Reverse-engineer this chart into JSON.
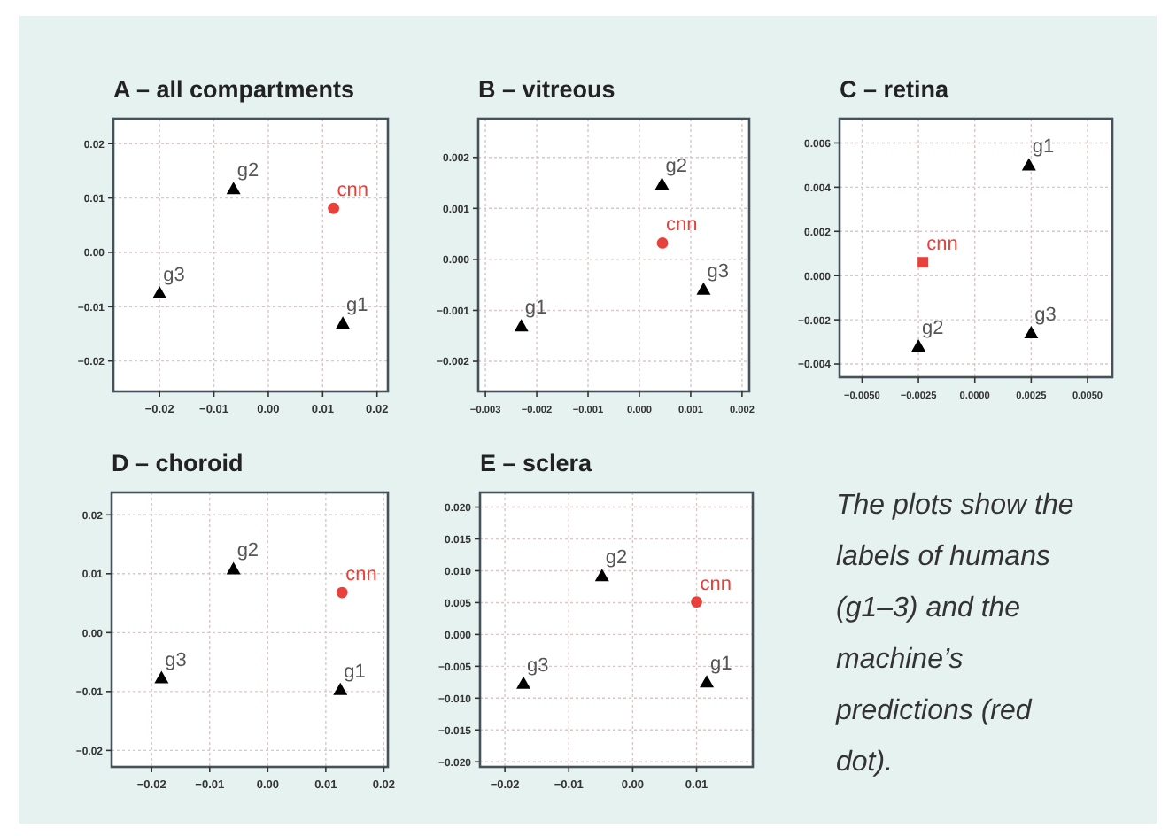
{
  "chart_data": [
    {
      "type": "scatter",
      "title": "A – all compartments",
      "xlim": [
        -0.0285,
        0.022
      ],
      "ylim": [
        -0.0256,
        0.0246
      ],
      "xticks": [
        {
          "value": -0.02,
          "label": "−0.02"
        },
        {
          "value": -0.01,
          "label": "−0.01"
        },
        {
          "value": 0,
          "label": "0.00"
        },
        {
          "value": 0.01,
          "label": "0.01"
        },
        {
          "value": 0.02,
          "label": "0.02"
        }
      ],
      "yticks": [
        {
          "value": -0.02,
          "label": "−0.02"
        },
        {
          "value": -0.01,
          "label": "−0.01"
        },
        {
          "value": 0,
          "label": "0.00"
        },
        {
          "value": 0.01,
          "label": "0.01"
        },
        {
          "value": 0.02,
          "label": "0.02"
        }
      ],
      "grid": true,
      "series": [
        {
          "name": "g1",
          "color": "#000000",
          "marker": "triangle",
          "x": [
            0.0137
          ],
          "values": [
            -0.0131
          ]
        },
        {
          "name": "g2",
          "color": "#000000",
          "marker": "triangle",
          "x": [
            -0.0064
          ],
          "values": [
            0.0117
          ]
        },
        {
          "name": "g3",
          "color": "#000000",
          "marker": "triangle",
          "x": [
            -0.02
          ],
          "values": [
            -0.0075
          ]
        },
        {
          "name": "cnn",
          "color": "#e8403a",
          "marker": "circle",
          "x": [
            0.012
          ],
          "values": [
            0.0081
          ]
        }
      ]
    },
    {
      "type": "scatter",
      "title": "B – vitreous",
      "xlim": [
        -0.00314,
        0.00214
      ],
      "ylim": [
        -0.00259,
        0.00276
      ],
      "xticks": [
        {
          "value": -0.003,
          "label": "−0.003"
        },
        {
          "value": -0.002,
          "label": "−0.002"
        },
        {
          "value": -0.001,
          "label": "−0.001"
        },
        {
          "value": 0,
          "label": "0.000"
        },
        {
          "value": 0.001,
          "label": "0.001"
        },
        {
          "value": 0.002,
          "label": "0.002"
        }
      ],
      "yticks": [
        {
          "value": -0.002,
          "label": "−0.002"
        },
        {
          "value": -0.001,
          "label": "−0.001"
        },
        {
          "value": 0,
          "label": "0.000"
        },
        {
          "value": 0.001,
          "label": "0.001"
        },
        {
          "value": 0.002,
          "label": "0.002"
        }
      ],
      "grid": true,
      "series": [
        {
          "name": "g1",
          "color": "#000000",
          "marker": "triangle",
          "x": [
            -0.0023
          ],
          "values": [
            -0.00131
          ]
        },
        {
          "name": "g2",
          "color": "#000000",
          "marker": "triangle",
          "x": [
            0.00044
          ],
          "values": [
            0.00147
          ]
        },
        {
          "name": "g3",
          "color": "#000000",
          "marker": "triangle",
          "x": [
            0.00125
          ],
          "values": [
            -0.00059
          ]
        },
        {
          "name": "cnn",
          "color": "#e8403a",
          "marker": "circle",
          "x": [
            0.00045
          ],
          "values": [
            0.00032
          ]
        }
      ]
    },
    {
      "type": "scatter",
      "title": "C – retina",
      "xlim": [
        -0.006,
        0.0061
      ],
      "ylim": [
        -0.0046,
        0.0071
      ],
      "xticks": [
        {
          "value": -0.005,
          "label": "−0.0050"
        },
        {
          "value": -0.0025,
          "label": "−0.0025"
        },
        {
          "value": 0,
          "label": "0.0000"
        },
        {
          "value": 0.0025,
          "label": "0.0025"
        },
        {
          "value": 0.005,
          "label": "0.0050"
        }
      ],
      "yticks": [
        {
          "value": -0.004,
          "label": "−0.004"
        },
        {
          "value": -0.002,
          "label": "−0.002"
        },
        {
          "value": 0,
          "label": "0.000"
        },
        {
          "value": 0.002,
          "label": "0.002"
        },
        {
          "value": 0.004,
          "label": "0.004"
        },
        {
          "value": 0.006,
          "label": "0.006"
        }
      ],
      "grid": true,
      "series": [
        {
          "name": "g1",
          "color": "#000000",
          "marker": "triangle",
          "x": [
            0.0024
          ],
          "values": [
            0.005
          ]
        },
        {
          "name": "g2",
          "color": "#000000",
          "marker": "triangle",
          "x": [
            -0.0025
          ],
          "values": [
            -0.0032
          ]
        },
        {
          "name": "g3",
          "color": "#000000",
          "marker": "triangle",
          "x": [
            0.0025
          ],
          "values": [
            -0.0026
          ]
        },
        {
          "name": "cnn",
          "color": "#e8403a",
          "marker": "square",
          "x": [
            -0.0023
          ],
          "values": [
            0.0006
          ]
        }
      ]
    },
    {
      "type": "scatter",
      "title": "D – choroid",
      "xlim": [
        -0.0269,
        0.0207
      ],
      "ylim": [
        -0.0228,
        0.0238
      ],
      "xticks": [
        {
          "value": -0.02,
          "label": "−0.02"
        },
        {
          "value": -0.01,
          "label": "−0.01"
        },
        {
          "value": 0,
          "label": "0.00"
        },
        {
          "value": 0.01,
          "label": "0.01"
        },
        {
          "value": 0.02,
          "label": "0.02"
        }
      ],
      "yticks": [
        {
          "value": -0.02,
          "label": "−0.02"
        },
        {
          "value": -0.01,
          "label": "−0.01"
        },
        {
          "value": 0,
          "label": "0.00"
        },
        {
          "value": 0.01,
          "label": "0.01"
        },
        {
          "value": 0.02,
          "label": "0.02"
        }
      ],
      "grid": true,
      "series": [
        {
          "name": "g1",
          "color": "#000000",
          "marker": "triangle",
          "x": [
            0.0125
          ],
          "values": [
            -0.0097
          ]
        },
        {
          "name": "g2",
          "color": "#000000",
          "marker": "triangle",
          "x": [
            -0.0059
          ],
          "values": [
            0.0108
          ]
        },
        {
          "name": "g3",
          "color": "#000000",
          "marker": "triangle",
          "x": [
            -0.0183
          ],
          "values": [
            -0.0077
          ]
        },
        {
          "name": "cnn",
          "color": "#e8403a",
          "marker": "circle",
          "x": [
            0.0128
          ],
          "values": [
            0.0068
          ]
        }
      ]
    },
    {
      "type": "scatter",
      "title": "E – sclera",
      "xlim": [
        -0.0239,
        0.0188
      ],
      "ylim": [
        -0.0208,
        0.0223
      ],
      "xticks": [
        {
          "value": -0.02,
          "label": "−0.02"
        },
        {
          "value": -0.01,
          "label": "−0.01"
        },
        {
          "value": 0,
          "label": "0.00"
        },
        {
          "value": 0.01,
          "label": "0.01"
        }
      ],
      "yticks": [
        {
          "value": -0.02,
          "label": "−0.020"
        },
        {
          "value": -0.015,
          "label": "−0.015"
        },
        {
          "value": -0.01,
          "label": "−0.010"
        },
        {
          "value": -0.005,
          "label": "−0.005"
        },
        {
          "value": 0,
          "label": "0.000"
        },
        {
          "value": 0.005,
          "label": "0.005"
        },
        {
          "value": 0.01,
          "label": "0.010"
        },
        {
          "value": 0.015,
          "label": "0.015"
        },
        {
          "value": 0.02,
          "label": "0.020"
        }
      ],
      "grid": true,
      "series": [
        {
          "name": "g1",
          "color": "#000000",
          "marker": "triangle",
          "x": [
            0.0116
          ],
          "values": [
            -0.0075
          ]
        },
        {
          "name": "g2",
          "color": "#000000",
          "marker": "triangle",
          "x": [
            -0.0048
          ],
          "values": [
            0.0092
          ]
        },
        {
          "name": "g3",
          "color": "#000000",
          "marker": "triangle",
          "x": [
            -0.0171
          ],
          "values": [
            -0.0077
          ]
        },
        {
          "name": "cnn",
          "color": "#e8403a",
          "marker": "circle",
          "x": [
            0.01
          ],
          "values": [
            0.0051
          ]
        }
      ]
    },
    {
      "type": "other",
      "annotations": [
        "The plots show the labels of humans (g1–3) and the machine’s predictions (red dot)."
      ]
    }
  ]
}
